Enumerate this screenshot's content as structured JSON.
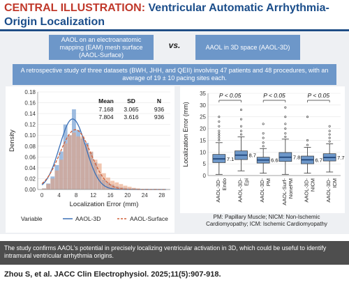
{
  "header": {
    "title_prefix": "CENTRAL ILLUSTRATION:",
    "title_rest": "Ventricular Automatic Arrhythmia-Origin Localization"
  },
  "comparison": {
    "left_box": "AAOL on an electroanatomic mapping (EAM) mesh surface (AAOL-Surface)",
    "vs": "vs.",
    "right_box": "AAOL in 3D space (AAOL-3D)"
  },
  "study": {
    "text": "A retrospective study of three datasets (BWH, JHH, and QEII) involving 47 patients and 48 procedures, with an average of 19 ± 10 pacing sites each."
  },
  "chart_data": [
    {
      "type": "histogram",
      "xlabel": "Localization Error (mm)",
      "ylabel": "Density",
      "xlim": [
        -1,
        30
      ],
      "ylim": [
        0,
        0.18
      ],
      "xticks": [
        "0",
        "4",
        "8",
        "12",
        "16",
        "20",
        "24",
        "28"
      ],
      "yticks": [
        "0.00",
        "0.02",
        "0.04",
        "0.06",
        "0.08",
        "0.10",
        "0.12",
        "0.14",
        "0.16",
        "0.18"
      ],
      "bin_width": 1,
      "series": [
        {
          "name": "AAOL-3D",
          "color": "#7ea6d6",
          "curve_color": "#3a6fb5",
          "line_style": "solid",
          "bin_starts": [
            0,
            1,
            2,
            3,
            4,
            5,
            6,
            7,
            8,
            9,
            10,
            11,
            12,
            13,
            14,
            15,
            16,
            17,
            18,
            19,
            20,
            21,
            22,
            23,
            24
          ],
          "density": [
            0.002,
            0.011,
            0.024,
            0.045,
            0.07,
            0.12,
            0.1,
            0.148,
            0.11,
            0.094,
            0.086,
            0.069,
            0.05,
            0.028,
            0.018,
            0.013,
            0.009,
            0.006,
            0.004,
            0.003,
            0.002,
            0.002,
            0.001,
            0.0,
            0.001
          ],
          "mean": 7.168,
          "sd": 3.065,
          "n": 936
        },
        {
          "name": "AAOL-Surface",
          "color": "#e8a07c",
          "curve_color": "#d0603a",
          "line_style": "dashed",
          "bin_starts": [
            0,
            1,
            2,
            3,
            4,
            5,
            6,
            7,
            8,
            9,
            10,
            11,
            12,
            13,
            14,
            15,
            16,
            17,
            18,
            19,
            20,
            21,
            22,
            23,
            24,
            25,
            26
          ],
          "density": [
            0.002,
            0.01,
            0.02,
            0.035,
            0.055,
            0.085,
            0.1,
            0.105,
            0.098,
            0.098,
            0.082,
            0.07,
            0.055,
            0.048,
            0.03,
            0.022,
            0.016,
            0.013,
            0.01,
            0.007,
            0.005,
            0.003,
            0.002,
            0.001,
            0.001,
            0.0,
            0.001
          ],
          "mean": 7.804,
          "sd": 3.616,
          "n": 936
        }
      ],
      "stats_table": {
        "headers": [
          "Mean",
          "SD",
          "N"
        ],
        "rows": [
          [
            "7.168",
            "3.065",
            "936"
          ],
          [
            "7.804",
            "3.616",
            "936"
          ]
        ]
      },
      "legend_title": "Variable",
      "legend_placement": "bottom"
    },
    {
      "type": "boxplot",
      "ylabel": "Localization Error (mm)",
      "ylim": [
        0,
        35
      ],
      "yticks": [
        "0",
        "5",
        "10",
        "15",
        "20",
        "25",
        "30",
        "35"
      ],
      "categories": [
        "AAOL-3D-\nEndo",
        "AAOL-3D-\nEpi",
        "AAOL-3D-\nPM",
        "AAOL-Surf-\nNonePM",
        "AAOL-3D-\nNICM",
        "AAOL-3D-\nICM"
      ],
      "box_color": "#6d97c9",
      "median_color": "#1a3f73",
      "boxes": [
        {
          "q1": 5.5,
          "median": 7.1,
          "q3": 9.0,
          "whisker_low": 0.5,
          "whisker_high": 14.0,
          "outliers": [
            15,
            16,
            17,
            18,
            19,
            21,
            23,
            25
          ]
        },
        {
          "q1": 6.8,
          "median": 8.7,
          "q3": 10.5,
          "whisker_low": 2.0,
          "whisker_high": 16.5,
          "outliers": [
            17.5,
            19,
            21,
            24,
            28
          ]
        },
        {
          "q1": 5.3,
          "median": 6.6,
          "q3": 7.8,
          "whisker_low": 1.0,
          "whisker_high": 11.5,
          "outliers": [
            12.5,
            14,
            16,
            18,
            22
          ]
        },
        {
          "q1": 6.0,
          "median": 7.8,
          "q3": 9.8,
          "whisker_low": 0.5,
          "whisker_high": 15.5,
          "outliers": [
            16.5,
            18,
            20,
            22,
            25,
            29
          ]
        },
        {
          "q1": 5.0,
          "median": 6.7,
          "q3": 8.3,
          "whisker_low": 1.0,
          "whisker_high": 12.0,
          "outliers": [
            13,
            15,
            25
          ]
        },
        {
          "q1": 6.2,
          "median": 7.7,
          "q3": 9.3,
          "whisker_low": 1.5,
          "whisker_high": 13.5,
          "outliers": [
            14.5,
            16,
            17.5,
            19,
            21
          ]
        }
      ],
      "value_labels": [
        "7.1",
        "8.7",
        "6.6",
        "7.8",
        "6.7",
        "7.7"
      ],
      "significance": [
        {
          "label": "P < 0.05",
          "pair": [
            0,
            1
          ]
        },
        {
          "label": "P < 0.05",
          "pair": [
            2,
            3
          ]
        },
        {
          "label": "P < 0.05",
          "pair": [
            4,
            5
          ]
        }
      ]
    }
  ],
  "footnote": {
    "line1": "PM: Papillary Muscle; NICM: Non-Ischemic",
    "line2": "Cardiomyopathy; ICM: Ischemic Cardiomyopathy"
  },
  "conclusion": {
    "text": "The study confirms AAOL's potential in precisely localizing ventricular activation in 3D, which could be useful to identify intramural ventricular arrhythmia origins."
  },
  "citation": {
    "text": "Zhou S, et al. JACC Clin Electrophysiol. 2025;11(5):907-918."
  }
}
